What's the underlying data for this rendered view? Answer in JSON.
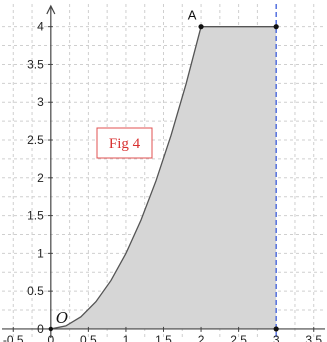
{
  "chart_data": {
    "type": "area",
    "xlim": [
      -0.65,
      3.65
    ],
    "ylim": [
      -0.12,
      4.3
    ],
    "x_ticks": [
      "-0.5",
      "0",
      "0.5",
      "1",
      "1.5",
      "2",
      "2.5",
      "3",
      "3.5"
    ],
    "x_tick_values": [
      -0.5,
      0,
      0.5,
      1,
      1.5,
      2,
      2.5,
      3,
      3.5
    ],
    "y_ticks": [
      "0",
      "0.5",
      "1",
      "1.5",
      "2",
      "2.5",
      "3",
      "3.5",
      "4"
    ],
    "y_tick_values": [
      0,
      0.5,
      1,
      1.5,
      2,
      2.5,
      3,
      3.5,
      4
    ],
    "grid": true,
    "series": [
      {
        "x": [
          0,
          0.2,
          0.4,
          0.6,
          0.8,
          1.0,
          1.2,
          1.4,
          1.6,
          1.8,
          2.0,
          2.5,
          3.0
        ],
        "y": [
          0,
          0.04,
          0.16,
          0.36,
          0.64,
          1.0,
          1.44,
          1.96,
          2.56,
          3.24,
          4.0,
          4.0,
          4.0
        ]
      }
    ],
    "shaded_region": {
      "x_from": 0,
      "x_to": 3
    },
    "vertical_line_x": 3,
    "points": [
      {
        "label": "A",
        "x": 2,
        "y": 4
      },
      {
        "label": "",
        "x": 3,
        "y": 4
      },
      {
        "label": "",
        "x": 3,
        "y": 0
      }
    ],
    "origin_label": "O",
    "annotation": "Fig 4",
    "colors": {
      "fill": "#d6d6d6",
      "curve": "#555555",
      "dashed_line": "#3b5bdb",
      "point": "#111111",
      "annotation_text": "#d83030"
    }
  }
}
